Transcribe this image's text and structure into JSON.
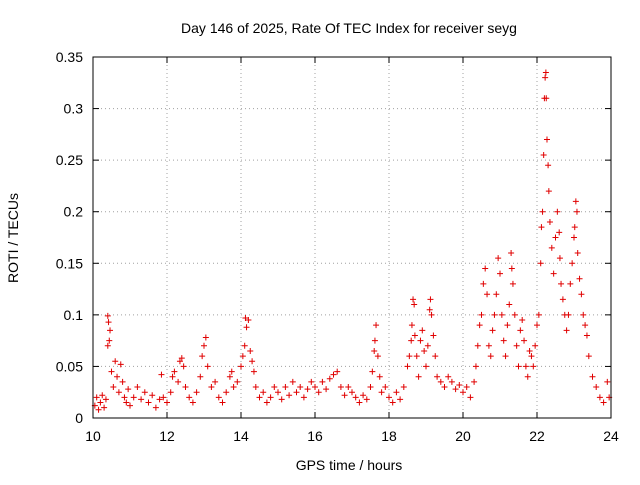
{
  "chart_data": {
    "type": "scatter",
    "title": "Day 146 of 2025, Rate Of TEC Index for receiver seyg",
    "xlabel": "GPS time / hours",
    "ylabel": "ROTI / TECUs",
    "xlim": [
      10,
      24
    ],
    "ylim": [
      0,
      0.35
    ],
    "xticks": [
      10,
      12,
      14,
      16,
      18,
      20,
      22,
      24
    ],
    "xtick_labels": [
      "10",
      "12",
      "14",
      "16",
      "18",
      "20",
      "22",
      "24"
    ],
    "yticks": [
      0,
      0.05,
      0.1,
      0.15,
      0.2,
      0.25,
      0.3,
      0.35
    ],
    "ytick_labels": [
      "0",
      "0.05",
      "0.1",
      "0.15",
      "0.2",
      "0.25",
      "0.3",
      "0.35"
    ],
    "grid": true,
    "marker": "plus",
    "color": "#e00000",
    "points": [
      [
        10.05,
        0.012
      ],
      [
        10.1,
        0.02
      ],
      [
        10.15,
        0.008
      ],
      [
        10.2,
        0.015
      ],
      [
        10.25,
        0.022
      ],
      [
        10.3,
        0.01
      ],
      [
        10.35,
        0.018
      ],
      [
        10.4,
        0.099
      ],
      [
        10.42,
        0.093
      ],
      [
        10.44,
        0.075
      ],
      [
        10.46,
        0.085
      ],
      [
        10.4,
        0.07
      ],
      [
        10.5,
        0.045
      ],
      [
        10.55,
        0.03
      ],
      [
        10.6,
        0.055
      ],
      [
        10.65,
        0.04
      ],
      [
        10.7,
        0.025
      ],
      [
        10.75,
        0.052
      ],
      [
        10.8,
        0.035
      ],
      [
        10.85,
        0.02
      ],
      [
        10.9,
        0.015
      ],
      [
        10.95,
        0.028
      ],
      [
        11.0,
        0.012
      ],
      [
        11.1,
        0.02
      ],
      [
        11.2,
        0.03
      ],
      [
        11.3,
        0.018
      ],
      [
        11.4,
        0.025
      ],
      [
        11.5,
        0.015
      ],
      [
        11.6,
        0.022
      ],
      [
        11.7,
        0.01
      ],
      [
        11.8,
        0.018
      ],
      [
        11.85,
        0.042
      ],
      [
        11.9,
        0.02
      ],
      [
        12.0,
        0.015
      ],
      [
        12.1,
        0.025
      ],
      [
        12.15,
        0.04
      ],
      [
        12.2,
        0.045
      ],
      [
        12.3,
        0.035
      ],
      [
        12.35,
        0.055
      ],
      [
        12.4,
        0.058
      ],
      [
        12.45,
        0.05
      ],
      [
        12.5,
        0.03
      ],
      [
        12.6,
        0.02
      ],
      [
        12.7,
        0.015
      ],
      [
        12.8,
        0.025
      ],
      [
        12.9,
        0.04
      ],
      [
        12.95,
        0.06
      ],
      [
        13.0,
        0.07
      ],
      [
        13.05,
        0.078
      ],
      [
        13.1,
        0.05
      ],
      [
        13.2,
        0.03
      ],
      [
        13.3,
        0.035
      ],
      [
        13.4,
        0.02
      ],
      [
        13.5,
        0.015
      ],
      [
        13.6,
        0.025
      ],
      [
        13.7,
        0.04
      ],
      [
        13.75,
        0.045
      ],
      [
        13.8,
        0.03
      ],
      [
        13.9,
        0.035
      ],
      [
        14.0,
        0.05
      ],
      [
        14.05,
        0.06
      ],
      [
        14.1,
        0.07
      ],
      [
        14.12,
        0.097
      ],
      [
        14.15,
        0.088
      ],
      [
        14.2,
        0.095
      ],
      [
        14.25,
        0.065
      ],
      [
        14.3,
        0.055
      ],
      [
        14.35,
        0.045
      ],
      [
        14.4,
        0.03
      ],
      [
        14.5,
        0.02
      ],
      [
        14.6,
        0.025
      ],
      [
        14.7,
        0.015
      ],
      [
        14.8,
        0.02
      ],
      [
        14.9,
        0.03
      ],
      [
        15.0,
        0.025
      ],
      [
        15.1,
        0.018
      ],
      [
        15.2,
        0.03
      ],
      [
        15.3,
        0.022
      ],
      [
        15.4,
        0.035
      ],
      [
        15.5,
        0.025
      ],
      [
        15.6,
        0.03
      ],
      [
        15.7,
        0.02
      ],
      [
        15.8,
        0.028
      ],
      [
        15.9,
        0.035
      ],
      [
        16.0,
        0.03
      ],
      [
        16.1,
        0.025
      ],
      [
        16.2,
        0.035
      ],
      [
        16.3,
        0.028
      ],
      [
        16.4,
        0.038
      ],
      [
        16.5,
        0.042
      ],
      [
        16.6,
        0.045
      ],
      [
        16.7,
        0.03
      ],
      [
        16.8,
        0.022
      ],
      [
        16.9,
        0.03
      ],
      [
        17.0,
        0.025
      ],
      [
        17.1,
        0.02
      ],
      [
        17.2,
        0.015
      ],
      [
        17.3,
        0.022
      ],
      [
        17.4,
        0.018
      ],
      [
        17.5,
        0.03
      ],
      [
        17.55,
        0.045
      ],
      [
        17.6,
        0.065
      ],
      [
        17.62,
        0.075
      ],
      [
        17.65,
        0.09
      ],
      [
        17.7,
        0.06
      ],
      [
        17.75,
        0.04
      ],
      [
        17.8,
        0.025
      ],
      [
        17.9,
        0.03
      ],
      [
        18.0,
        0.02
      ],
      [
        18.1,
        0.015
      ],
      [
        18.2,
        0.025
      ],
      [
        18.3,
        0.018
      ],
      [
        18.4,
        0.03
      ],
      [
        18.5,
        0.05
      ],
      [
        18.55,
        0.06
      ],
      [
        18.6,
        0.075
      ],
      [
        18.62,
        0.09
      ],
      [
        18.65,
        0.115
      ],
      [
        18.68,
        0.11
      ],
      [
        18.7,
        0.08
      ],
      [
        18.75,
        0.06
      ],
      [
        18.8,
        0.04
      ],
      [
        18.85,
        0.075
      ],
      [
        18.9,
        0.085
      ],
      [
        18.95,
        0.065
      ],
      [
        19.0,
        0.05
      ],
      [
        19.05,
        0.07
      ],
      [
        19.1,
        0.105
      ],
      [
        19.12,
        0.115
      ],
      [
        19.15,
        0.1
      ],
      [
        19.2,
        0.08
      ],
      [
        19.25,
        0.06
      ],
      [
        19.3,
        0.04
      ],
      [
        19.4,
        0.035
      ],
      [
        19.5,
        0.03
      ],
      [
        19.6,
        0.04
      ],
      [
        19.7,
        0.035
      ],
      [
        19.8,
        0.028
      ],
      [
        19.9,
        0.032
      ],
      [
        20.0,
        0.025
      ],
      [
        20.1,
        0.03
      ],
      [
        20.2,
        0.02
      ],
      [
        20.3,
        0.035
      ],
      [
        20.35,
        0.05
      ],
      [
        20.4,
        0.07
      ],
      [
        20.45,
        0.09
      ],
      [
        20.5,
        0.1
      ],
      [
        20.55,
        0.13
      ],
      [
        20.6,
        0.145
      ],
      [
        20.65,
        0.12
      ],
      [
        20.7,
        0.07
      ],
      [
        20.75,
        0.06
      ],
      [
        20.8,
        0.085
      ],
      [
        20.85,
        0.1
      ],
      [
        20.9,
        0.12
      ],
      [
        20.95,
        0.155
      ],
      [
        21.0,
        0.14
      ],
      [
        21.05,
        0.1
      ],
      [
        21.1,
        0.075
      ],
      [
        21.15,
        0.06
      ],
      [
        21.2,
        0.09
      ],
      [
        21.25,
        0.11
      ],
      [
        21.3,
        0.16
      ],
      [
        21.32,
        0.145
      ],
      [
        21.35,
        0.13
      ],
      [
        21.4,
        0.1
      ],
      [
        21.45,
        0.07
      ],
      [
        21.5,
        0.05
      ],
      [
        21.55,
        0.085
      ],
      [
        21.6,
        0.095
      ],
      [
        21.65,
        0.075
      ],
      [
        21.7,
        0.05
      ],
      [
        21.75,
        0.04
      ],
      [
        21.8,
        0.065
      ],
      [
        21.85,
        0.06
      ],
      [
        21.9,
        0.05
      ],
      [
        21.95,
        0.07
      ],
      [
        22.0,
        0.09
      ],
      [
        22.05,
        0.1
      ],
      [
        22.1,
        0.15
      ],
      [
        22.12,
        0.185
      ],
      [
        22.15,
        0.2
      ],
      [
        22.18,
        0.255
      ],
      [
        22.2,
        0.31
      ],
      [
        22.22,
        0.33
      ],
      [
        22.24,
        0.335
      ],
      [
        22.25,
        0.31
      ],
      [
        22.27,
        0.27
      ],
      [
        22.3,
        0.245
      ],
      [
        22.32,
        0.22
      ],
      [
        22.35,
        0.19
      ],
      [
        22.4,
        0.165
      ],
      [
        22.45,
        0.14
      ],
      [
        22.5,
        0.175
      ],
      [
        22.55,
        0.2
      ],
      [
        22.6,
        0.18
      ],
      [
        22.62,
        0.155
      ],
      [
        22.65,
        0.13
      ],
      [
        22.7,
        0.115
      ],
      [
        22.75,
        0.1
      ],
      [
        22.8,
        0.085
      ],
      [
        22.85,
        0.1
      ],
      [
        22.9,
        0.13
      ],
      [
        22.95,
        0.15
      ],
      [
        23.0,
        0.175
      ],
      [
        23.02,
        0.185
      ],
      [
        23.05,
        0.21
      ],
      [
        23.08,
        0.2
      ],
      [
        23.1,
        0.16
      ],
      [
        23.15,
        0.135
      ],
      [
        23.2,
        0.12
      ],
      [
        23.25,
        0.1
      ],
      [
        23.3,
        0.09
      ],
      [
        23.35,
        0.08
      ],
      [
        23.4,
        0.06
      ],
      [
        23.5,
        0.04
      ],
      [
        23.6,
        0.03
      ],
      [
        23.7,
        0.02
      ],
      [
        23.8,
        0.015
      ],
      [
        23.9,
        0.035
      ],
      [
        23.95,
        0.02
      ]
    ]
  }
}
